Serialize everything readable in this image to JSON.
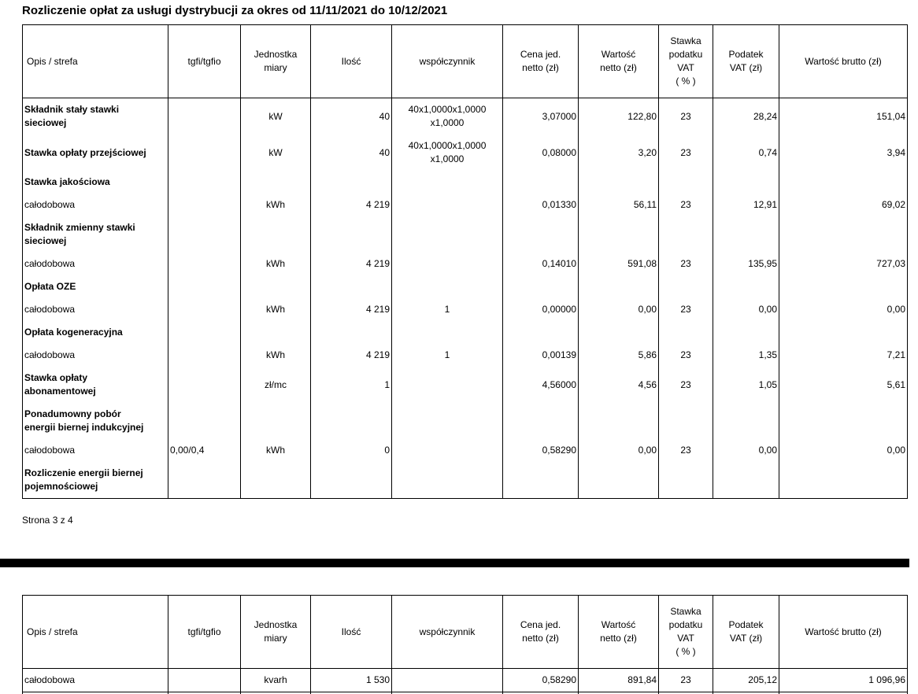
{
  "doc": {
    "title": "Rozliczenie opłat za usługi dystrybucji za okres od 11/11/2021 do 10/12/2021",
    "page_indicator": "Strona 3 z 4"
  },
  "tables": {
    "columns": [
      "Opis / strefa",
      "tgfi/tgfio",
      "Jednostka\nmiary",
      "Ilość",
      "współczynnik",
      "Cena jed.\nnetto (zł)",
      "Wartość\nnetto (zł)",
      "Stawka\npodatku\nVAT\n( % )",
      "Podatek\nVAT (zł)",
      "Wartość brutto (zł)"
    ],
    "page3": {
      "rows": [
        {
          "bold": true,
          "cells": [
            "Składnik stały stawki\nsieciowej",
            "",
            "kW",
            "40",
            "40x1,0000x1,0000\nx1,0000",
            "3,07000",
            "122,80",
            "23",
            "28,24",
            "151,04"
          ]
        },
        {
          "bold": true,
          "cells": [
            "Stawka opłaty przejściowej",
            "",
            "kW",
            "40",
            "40x1,0000x1,0000\nx1,0000",
            "0,08000",
            "3,20",
            "23",
            "0,74",
            "3,94"
          ]
        },
        {
          "bold": true,
          "cells": [
            "Stawka jakościowa",
            "",
            "",
            "",
            "",
            "",
            "",
            "",
            "",
            ""
          ]
        },
        {
          "bold": false,
          "cells": [
            "całodobowa",
            "",
            "kWh",
            "4 219",
            "",
            "0,01330",
            "56,11",
            "23",
            "12,91",
            "69,02"
          ]
        },
        {
          "bold": true,
          "cells": [
            "Składnik zmienny stawki\nsieciowej",
            "",
            "",
            "",
            "",
            "",
            "",
            "",
            "",
            ""
          ]
        },
        {
          "bold": false,
          "cells": [
            "całodobowa",
            "",
            "kWh",
            "4 219",
            "",
            "0,14010",
            "591,08",
            "23",
            "135,95",
            "727,03"
          ]
        },
        {
          "bold": true,
          "cells": [
            "Opłata OZE",
            "",
            "",
            "",
            "",
            "",
            "",
            "",
            "",
            ""
          ]
        },
        {
          "bold": false,
          "cells": [
            "całodobowa",
            "",
            "kWh",
            "4 219",
            "1",
            "0,00000",
            "0,00",
            "23",
            "0,00",
            "0,00"
          ]
        },
        {
          "bold": true,
          "cells": [
            "Opłata kogeneracyjna",
            "",
            "",
            "",
            "",
            "",
            "",
            "",
            "",
            ""
          ]
        },
        {
          "bold": false,
          "cells": [
            "całodobowa",
            "",
            "kWh",
            "4 219",
            "1",
            "0,00139",
            "5,86",
            "23",
            "1,35",
            "7,21"
          ]
        },
        {
          "bold": true,
          "cells": [
            "Stawka opłaty\nabonamentowej",
            "",
            "zł/mc",
            "1",
            "",
            "4,56000",
            "4,56",
            "23",
            "1,05",
            "5,61"
          ]
        },
        {
          "bold": true,
          "cells": [
            "Ponadumowny pobór\nenergii biernej indukcyjnej",
            "",
            "",
            "",
            "",
            "",
            "",
            "",
            "",
            ""
          ]
        },
        {
          "bold": false,
          "cells": [
            "całodobowa",
            "0,00/0,4",
            "kWh",
            "0",
            "",
            "0,58290",
            "0,00",
            "23",
            "0,00",
            "0,00"
          ]
        },
        {
          "bold": true,
          "cells": [
            "Rozliczenie energii biernej\npojemnościowej",
            "",
            "",
            "",
            "",
            "",
            "",
            "",
            "",
            ""
          ]
        }
      ]
    },
    "page4": {
      "rows": [
        {
          "bold": false,
          "cells": [
            "całodobowa",
            "",
            "kvarh",
            "1 530",
            "",
            "0,58290",
            "891,84",
            "23",
            "205,12",
            "1 096,96"
          ]
        },
        {
          "bold": false,
          "cells": [
            "",
            "",
            "",
            "",
            "",
            "",
            "",
            "",
            "",
            ""
          ]
        }
      ]
    }
  }
}
